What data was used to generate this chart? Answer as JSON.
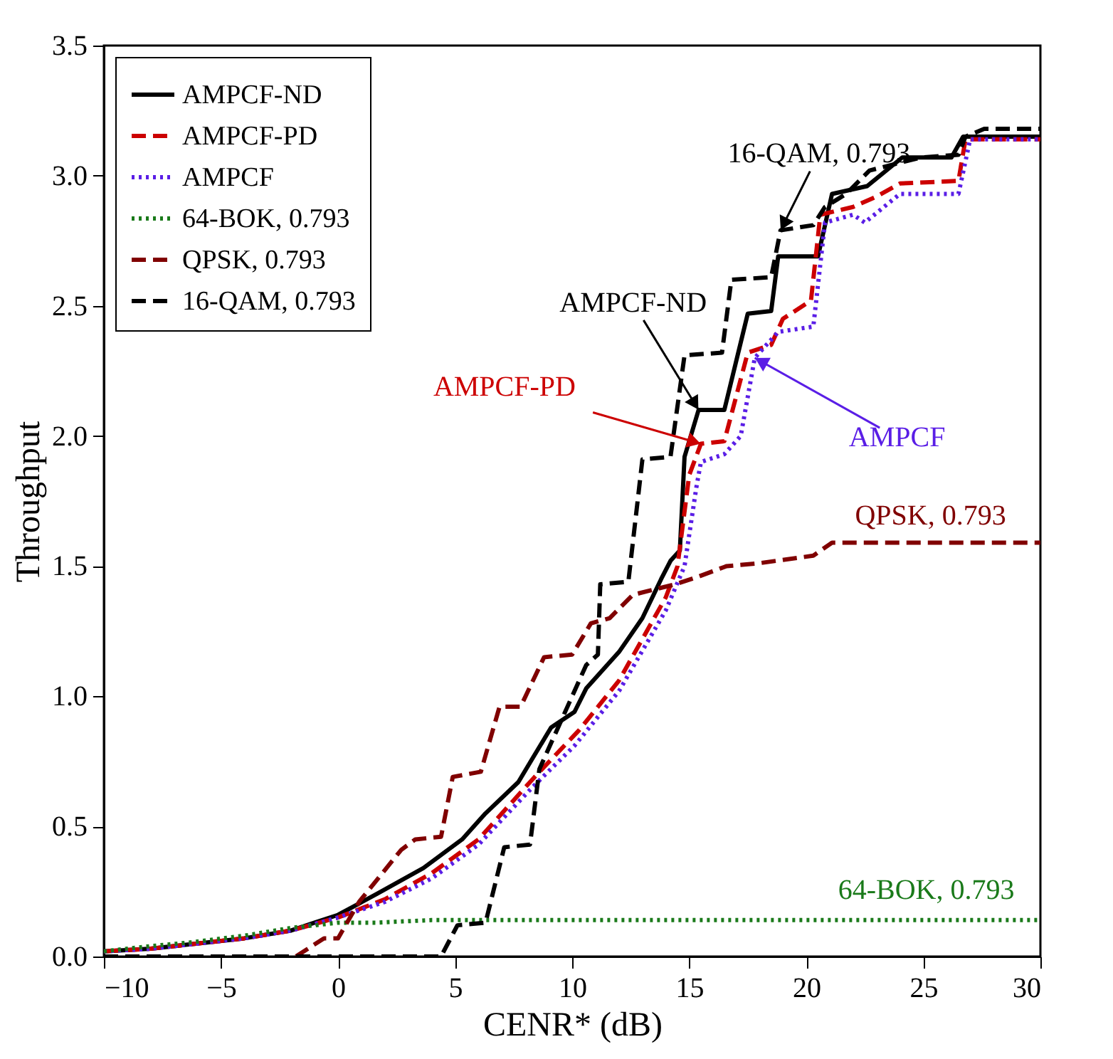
{
  "chart_data": {
    "type": "line",
    "xlabel": "CENR*  (dB)",
    "ylabel": "Throughput",
    "xlim": [
      -10,
      30
    ],
    "ylim": [
      0,
      3.5
    ],
    "xticks": [
      -10,
      -5,
      0,
      5,
      10,
      15,
      20,
      25,
      30
    ],
    "yticks": [
      {
        "value": 0,
        "label": "0.0"
      },
      {
        "value": 0.5,
        "label": "0.5"
      },
      {
        "value": 1,
        "label": "1.0"
      },
      {
        "value": 1.5,
        "label": "1.5"
      },
      {
        "value": 2,
        "label": "2.0"
      },
      {
        "value": 2.5,
        "label": "2.5"
      },
      {
        "value": 3,
        "label": "3.0"
      },
      {
        "value": 3.5,
        "label": "3.5"
      }
    ],
    "legend": "top left",
    "grid": false,
    "marker": "none",
    "series": [
      {
        "name": "AMPCF-ND",
        "color": "#000000",
        "line_style": "solid",
        "x": [
          -10,
          -8,
          -6,
          -4,
          -2,
          -1,
          0,
          1.65,
          3.65,
          5.3,
          6.3,
          7.7,
          8.3,
          9.1,
          10.1,
          10.6,
          12,
          13,
          13.8,
          14.2,
          14.6,
          14.8,
          15.4,
          16.5,
          17.5,
          18.5,
          18.8,
          20.5,
          21.1,
          22.6,
          24.1,
          26.2,
          26.7,
          30
        ],
        "values": [
          0.02,
          0.03,
          0.05,
          0.07,
          0.1,
          0.13,
          0.16,
          0.24,
          0.34,
          0.45,
          0.55,
          0.67,
          0.76,
          0.88,
          0.94,
          1.03,
          1.17,
          1.3,
          1.45,
          1.52,
          1.56,
          1.92,
          2.1,
          2.1,
          2.47,
          2.48,
          2.69,
          2.69,
          2.93,
          2.96,
          3.07,
          3.07,
          3.15,
          3.15
        ]
      },
      {
        "name": "AMPCF-PD",
        "color": "#cc0000",
        "line_style": "dashed",
        "x": [
          -10,
          -8,
          -6,
          -4,
          -2,
          0,
          2,
          4,
          6,
          8.4,
          10.3,
          12,
          14,
          14.5,
          15,
          15.5,
          16.5,
          17.5,
          18.5,
          19,
          20.2,
          20.6,
          22,
          23,
          24,
          26.5,
          26.8,
          30
        ],
        "values": [
          0.02,
          0.03,
          0.05,
          0.07,
          0.1,
          0.15,
          0.22,
          0.32,
          0.45,
          0.69,
          0.87,
          1.06,
          1.38,
          1.5,
          1.85,
          1.97,
          1.98,
          2.32,
          2.35,
          2.45,
          2.52,
          2.85,
          2.88,
          2.92,
          2.97,
          2.98,
          3.14,
          3.14
        ]
      },
      {
        "name": "AMPCF",
        "color": "#5a1ee6",
        "line_style": "dotted",
        "x": [
          -10,
          -8,
          -6,
          -4,
          -2,
          0,
          2,
          4,
          6,
          8.3,
          10.1,
          12,
          14,
          14.8,
          15.3,
          15.5,
          16.5,
          17.2,
          17.8,
          18.8,
          20.3,
          20.8,
          22,
          22.5,
          24,
          26.5,
          27,
          30
        ],
        "values": [
          0.02,
          0.03,
          0.05,
          0.07,
          0.1,
          0.15,
          0.21,
          0.3,
          0.43,
          0.65,
          0.81,
          1.02,
          1.33,
          1.5,
          1.8,
          1.9,
          1.93,
          2,
          2.3,
          2.4,
          2.42,
          2.82,
          2.85,
          2.82,
          2.93,
          2.93,
          3.14,
          3.14
        ]
      },
      {
        "name": "64-BOK, 0.793",
        "color": "#1a7a1a",
        "line_style": "dotted",
        "x": [
          -10,
          -9,
          -8,
          -6.2,
          -4,
          -2,
          0,
          1.6,
          4,
          6.9,
          20,
          30
        ],
        "values": [
          0.02,
          0.03,
          0.04,
          0.055,
          0.08,
          0.11,
          0.13,
          0.13,
          0.14,
          0.14,
          0.14,
          0.14
        ]
      },
      {
        "name": "QPSK, 0.793",
        "color": "#800000",
        "line_style": "dashed",
        "x": [
          -10,
          -1.8,
          -0.6,
          0,
          0.9,
          2.7,
          3.3,
          4.4,
          4.9,
          6.1,
          6.9,
          7.8,
          8.8,
          10,
          10.8,
          11.6,
          12.6,
          14.4,
          15.4,
          16.6,
          17.9,
          20.3,
          21.1,
          30
        ],
        "values": [
          0,
          0,
          0.07,
          0.07,
          0.21,
          0.41,
          0.45,
          0.46,
          0.69,
          0.71,
          0.96,
          0.96,
          1.15,
          1.16,
          1.28,
          1.3,
          1.39,
          1.43,
          1.46,
          1.5,
          1.51,
          1.54,
          1.59,
          1.59
        ]
      },
      {
        "name": "16-QAM, 0.793",
        "color": "#000000",
        "line_style": "dashed",
        "x": [
          -10,
          4.4,
          5.1,
          6.3,
          7.1,
          8.2,
          8.6,
          10.6,
          11.1,
          11.2,
          12.4,
          13,
          14.2,
          14.8,
          16.4,
          16.8,
          18.5,
          18.9,
          20.3,
          20.8,
          21.7,
          22.7,
          24.9,
          26.5,
          26.8,
          27.6,
          30
        ],
        "values": [
          0,
          0,
          0.12,
          0.13,
          0.42,
          0.43,
          0.72,
          1.12,
          1.16,
          1.43,
          1.44,
          1.91,
          1.92,
          2.31,
          2.32,
          2.6,
          2.61,
          2.79,
          2.81,
          2.88,
          2.93,
          3.02,
          3.07,
          3.08,
          3.15,
          3.18,
          3.18
        ]
      }
    ],
    "annotations": [
      {
        "text": "AMPCF-ND",
        "x": 15.4,
        "y": 2.1
      },
      {
        "text": "AMPCF-PD",
        "x": 15.5,
        "y": 1.97
      },
      {
        "text": "AMPCF",
        "x": 17.8,
        "y": 2.3
      },
      {
        "text": "64-BOK, 0.793",
        "x": 25,
        "y": 0.14
      },
      {
        "text": "QPSK, 0.793",
        "x": 25,
        "y": 1.59
      },
      {
        "text": "16-QAM, 0.793",
        "x": 18.9,
        "y": 2.79
      }
    ]
  }
}
